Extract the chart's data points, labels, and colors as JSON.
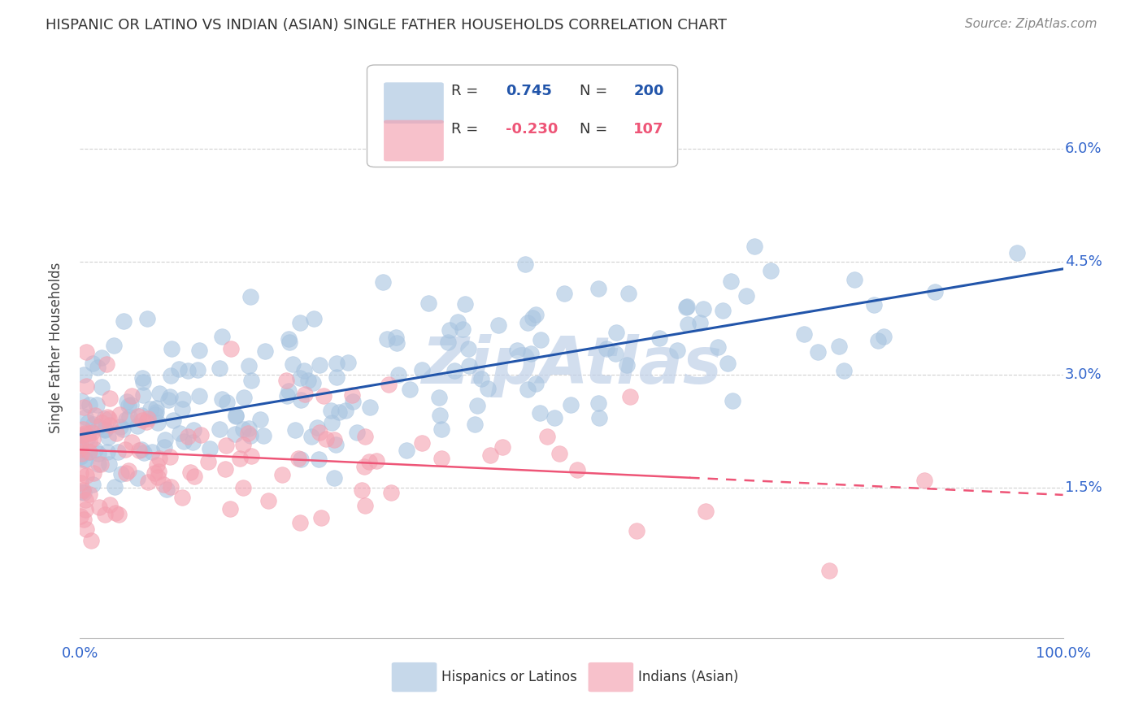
{
  "title": "HISPANIC OR LATINO VS INDIAN (ASIAN) SINGLE FATHER HOUSEHOLDS CORRELATION CHART",
  "source": "Source: ZipAtlas.com",
  "ylabel_label": "Single Father Households",
  "watermark": "ZipAtlas",
  "blue_R": "0.745",
  "blue_N": "200",
  "pink_R": "-0.230",
  "pink_N": "107",
  "legend_label_blue": "Hispanics or Latinos",
  "legend_label_pink": "Indians (Asian)",
  "blue_color": "#A8C4E0",
  "pink_color": "#F4A0B0",
  "blue_line_color": "#2255AA",
  "pink_line_color": "#EE5577",
  "title_color": "#333333",
  "axis_label_color": "#3366CC",
  "watermark_color": "#C0D0E8",
  "background_color": "#FFFFFF",
  "grid_color": "#CCCCCC",
  "xmin": 0.0,
  "xmax": 1.0,
  "ymin": -0.005,
  "ymax": 0.072,
  "blue_intercept": 0.022,
  "blue_slope": 0.022,
  "pink_intercept": 0.02,
  "pink_slope": -0.006,
  "pink_line_solid_end": 0.62,
  "seed_blue": 42,
  "seed_pink": 99
}
